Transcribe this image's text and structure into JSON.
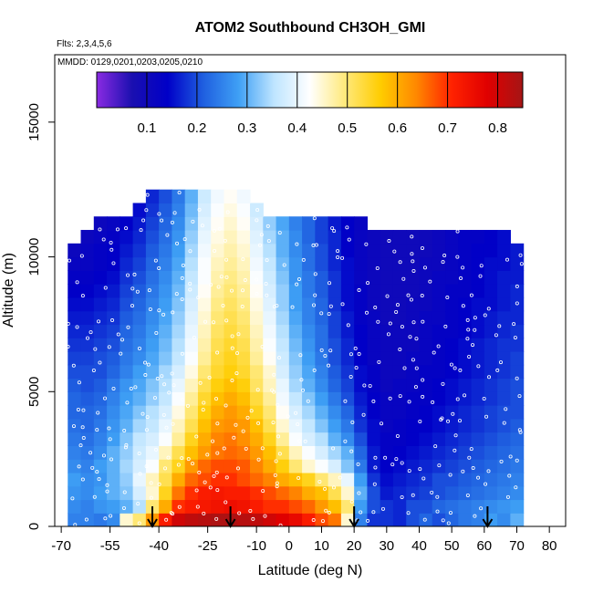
{
  "chart_data": {
    "type": "heatmap",
    "title": "ATOM2 Southbound CH3OH_GMI",
    "subtitle_flights": "Flts: 2,3,4,5,6",
    "subtitle_dates": "MMDD: 0129,0201,0203,0205,0210",
    "xlabel": "Latitude (deg N)",
    "ylabel": "Altitude (m)",
    "xlim": [
      -72,
      85
    ],
    "ylim": [
      0,
      17500
    ],
    "x_ticks": [
      -70,
      -55,
      -40,
      -25,
      -10,
      0,
      10,
      20,
      30,
      40,
      50,
      60,
      70,
      80
    ],
    "x_tick_labels": [
      "-70",
      "-55",
      "-40",
      "-25",
      "-10",
      "0",
      "10",
      "20",
      "30",
      "40",
      "50",
      "60",
      "70",
      "80"
    ],
    "y_ticks": [
      0,
      5000,
      10000,
      15000
    ],
    "y_tick_labels": [
      "0",
      "5000",
      "10000",
      "15000"
    ],
    "colorbar": {
      "min": 0.0,
      "max": 0.85,
      "ticks": [
        0.1,
        0.2,
        0.3,
        0.4,
        0.5,
        0.6,
        0.7,
        0.8
      ],
      "tick_labels": [
        "0.1",
        "0.2",
        "0.3",
        "0.4",
        "0.5",
        "0.6",
        "0.7",
        "0.8"
      ],
      "colors": [
        "#8a2be2",
        "#1a0fb0",
        "#0000c8",
        "#1f5fe0",
        "#3fa0f5",
        "#bfe5ff",
        "#ffffff",
        "#ffe97a",
        "#ffcc00",
        "#ff8800",
        "#ff2200",
        "#e00000",
        "#a51515"
      ]
    },
    "curtain": {
      "lat_edges": [
        -68,
        -64,
        -60,
        -56,
        -52,
        -48,
        -44,
        -40,
        -36,
        -32,
        -28,
        -24,
        -20,
        -16,
        -12,
        -8,
        -4,
        0,
        4,
        8,
        12,
        16,
        20,
        24,
        28,
        32,
        36,
        40,
        44,
        48,
        52,
        56,
        60,
        64,
        68,
        72
      ],
      "alt_edges": [
        0,
        500,
        1000,
        1500,
        2000,
        2500,
        3000,
        3500,
        4000,
        4500,
        5000,
        5500,
        6000,
        6500,
        7000,
        7500,
        8000,
        8500,
        9000,
        9500,
        10000,
        10500,
        11000,
        11500,
        12000,
        12500
      ],
      "rows": [
        [
          0.25,
          0.25,
          0.24,
          0.26,
          0.45,
          0.5,
          0.62,
          0.72,
          0.8,
          0.82,
          0.83,
          0.84,
          0.84,
          0.83,
          0.82,
          0.8,
          0.78,
          0.76,
          0.72,
          0.68,
          0.65,
          0.45,
          0.25,
          0.18,
          0.18,
          0.17,
          0.2,
          0.22,
          0.2,
          0.22,
          0.24,
          0.25,
          0.28,
          0.26,
          0.3
        ],
        [
          0.26,
          0.25,
          0.27,
          0.28,
          0.3,
          0.35,
          0.5,
          0.6,
          0.7,
          0.72,
          0.73,
          0.74,
          0.75,
          0.74,
          0.72,
          0.7,
          0.7,
          0.68,
          0.66,
          0.62,
          0.58,
          0.5,
          0.28,
          0.2,
          0.18,
          0.17,
          0.2,
          0.2,
          0.22,
          0.23,
          0.24,
          0.25,
          0.26,
          0.27,
          0.28
        ],
        [
          0.27,
          0.26,
          0.28,
          0.3,
          0.32,
          0.38,
          0.45,
          0.55,
          0.65,
          0.7,
          0.72,
          0.73,
          0.72,
          0.72,
          0.7,
          0.68,
          0.66,
          0.64,
          0.6,
          0.58,
          0.52,
          0.45,
          0.3,
          0.2,
          0.16,
          0.17,
          0.18,
          0.19,
          0.2,
          0.21,
          0.22,
          0.23,
          0.24,
          0.25,
          0.26
        ],
        [
          0.28,
          0.26,
          0.27,
          0.3,
          0.33,
          0.4,
          0.46,
          0.52,
          0.6,
          0.66,
          0.68,
          0.7,
          0.7,
          0.68,
          0.66,
          0.64,
          0.6,
          0.58,
          0.55,
          0.5,
          0.46,
          0.4,
          0.28,
          0.18,
          0.15,
          0.16,
          0.17,
          0.18,
          0.2,
          0.2,
          0.21,
          0.22,
          0.23,
          0.24,
          0.25
        ],
        [
          0.26,
          0.25,
          0.28,
          0.3,
          0.34,
          0.38,
          0.42,
          0.5,
          0.55,
          0.62,
          0.66,
          0.68,
          0.68,
          0.67,
          0.64,
          0.6,
          0.56,
          0.5,
          0.45,
          0.42,
          0.38,
          0.32,
          0.24,
          0.16,
          0.14,
          0.15,
          0.16,
          0.17,
          0.18,
          0.19,
          0.2,
          0.21,
          0.22,
          0.23,
          0.24
        ],
        [
          0.25,
          0.24,
          0.26,
          0.3,
          0.33,
          0.37,
          0.4,
          0.46,
          0.52,
          0.58,
          0.62,
          0.65,
          0.66,
          0.65,
          0.62,
          0.58,
          0.52,
          0.46,
          0.42,
          0.38,
          0.34,
          0.3,
          0.22,
          0.16,
          0.13,
          0.14,
          0.15,
          0.16,
          0.17,
          0.18,
          0.19,
          0.2,
          0.21,
          0.22,
          0.23
        ],
        [
          0.24,
          0.23,
          0.25,
          0.28,
          0.32,
          0.36,
          0.38,
          0.42,
          0.48,
          0.55,
          0.6,
          0.64,
          0.65,
          0.63,
          0.6,
          0.55,
          0.48,
          0.42,
          0.38,
          0.35,
          0.3,
          0.26,
          0.2,
          0.15,
          0.13,
          0.13,
          0.14,
          0.15,
          0.16,
          0.17,
          0.18,
          0.19,
          0.2,
          0.21,
          0.22
        ],
        [
          0.23,
          0.22,
          0.24,
          0.27,
          0.3,
          0.34,
          0.36,
          0.4,
          0.46,
          0.52,
          0.58,
          0.62,
          0.63,
          0.62,
          0.58,
          0.52,
          0.45,
          0.4,
          0.36,
          0.32,
          0.28,
          0.24,
          0.18,
          0.15,
          0.12,
          0.13,
          0.14,
          0.14,
          0.15,
          0.16,
          0.17,
          0.18,
          0.19,
          0.2,
          0.21
        ],
        [
          0.22,
          0.22,
          0.23,
          0.26,
          0.29,
          0.32,
          0.35,
          0.38,
          0.44,
          0.5,
          0.56,
          0.6,
          0.62,
          0.6,
          0.55,
          0.5,
          0.43,
          0.38,
          0.34,
          0.3,
          0.26,
          0.22,
          0.17,
          0.14,
          0.12,
          0.12,
          0.13,
          0.14,
          0.15,
          0.16,
          0.17,
          0.18,
          0.19,
          0.2,
          0.2
        ],
        [
          0.22,
          0.21,
          0.22,
          0.25,
          0.28,
          0.3,
          0.33,
          0.36,
          0.42,
          0.48,
          0.54,
          0.58,
          0.6,
          0.58,
          0.53,
          0.48,
          0.41,
          0.36,
          0.32,
          0.28,
          0.24,
          0.2,
          0.16,
          0.14,
          0.12,
          0.12,
          0.13,
          0.13,
          0.14,
          0.15,
          0.16,
          0.17,
          0.18,
          0.19,
          0.2
        ],
        [
          0.21,
          0.2,
          0.21,
          0.24,
          0.27,
          0.29,
          0.32,
          0.35,
          0.4,
          0.46,
          0.52,
          0.56,
          0.58,
          0.56,
          0.51,
          0.46,
          0.4,
          0.34,
          0.3,
          0.26,
          0.22,
          0.19,
          0.15,
          0.13,
          0.11,
          0.12,
          0.12,
          0.13,
          0.14,
          0.15,
          0.16,
          0.17,
          0.18,
          0.19,
          0.2
        ],
        [
          0.2,
          0.2,
          0.2,
          0.22,
          0.25,
          0.28,
          0.3,
          0.34,
          0.38,
          0.44,
          0.5,
          0.54,
          0.56,
          0.54,
          0.5,
          0.45,
          0.38,
          0.33,
          0.29,
          0.25,
          0.21,
          0.18,
          0.15,
          0.13,
          0.11,
          0.11,
          0.12,
          0.13,
          0.13,
          0.14,
          0.15,
          0.16,
          0.17,
          0.18,
          0.19
        ],
        [
          0.19,
          0.19,
          0.2,
          0.21,
          0.24,
          0.26,
          0.29,
          0.32,
          0.36,
          0.42,
          0.48,
          0.53,
          0.55,
          0.53,
          0.48,
          0.43,
          0.37,
          0.32,
          0.28,
          0.24,
          0.2,
          0.17,
          0.14,
          0.12,
          0.11,
          0.11,
          0.12,
          0.12,
          0.13,
          0.14,
          0.15,
          0.16,
          0.17,
          0.18,
          0.19
        ],
        [
          0.18,
          0.18,
          0.19,
          0.2,
          0.23,
          0.25,
          0.28,
          0.31,
          0.35,
          0.41,
          0.47,
          0.52,
          0.54,
          0.52,
          0.47,
          0.42,
          0.36,
          0.31,
          0.27,
          0.23,
          0.2,
          0.17,
          0.14,
          0.12,
          0.11,
          0.11,
          0.11,
          0.12,
          0.13,
          0.14,
          0.15,
          0.16,
          0.17,
          0.18,
          0.18
        ],
        [
          0.17,
          0.17,
          0.18,
          0.19,
          0.22,
          0.24,
          0.27,
          0.3,
          0.34,
          0.4,
          0.46,
          0.51,
          0.53,
          0.51,
          0.46,
          0.41,
          0.35,
          0.3,
          0.26,
          0.23,
          0.19,
          0.16,
          0.14,
          0.12,
          0.11,
          0.11,
          0.11,
          0.12,
          0.13,
          0.13,
          0.14,
          0.15,
          0.16,
          0.17,
          0.18
        ],
        [
          0.16,
          0.16,
          0.17,
          0.18,
          0.21,
          0.23,
          0.26,
          0.29,
          0.33,
          0.39,
          0.45,
          0.5,
          0.52,
          0.5,
          0.45,
          0.4,
          0.34,
          0.29,
          0.25,
          0.22,
          0.19,
          0.16,
          0.13,
          0.12,
          0.1,
          0.1,
          0.11,
          0.12,
          0.12,
          0.13,
          0.14,
          0.15,
          0.16,
          0.17,
          0.17
        ],
        [
          0.15,
          0.15,
          0.16,
          0.17,
          0.2,
          0.22,
          0.25,
          0.28,
          0.32,
          0.38,
          0.44,
          0.49,
          0.51,
          0.49,
          0.44,
          0.39,
          0.33,
          0.28,
          0.25,
          0.22,
          0.18,
          0.15,
          0.13,
          0.11,
          0.1,
          0.1,
          0.11,
          0.11,
          0.12,
          0.13,
          0.14,
          0.15,
          0.15,
          0.16,
          0.17
        ],
        [
          0.14,
          0.14,
          0.15,
          0.16,
          0.19,
          0.21,
          0.24,
          0.27,
          0.31,
          0.37,
          0.43,
          0.48,
          0.5,
          0.48,
          0.43,
          0.38,
          0.33,
          0.28,
          0.24,
          0.21,
          0.18,
          0.15,
          0.13,
          0.11,
          0.1,
          0.1,
          0.1,
          0.11,
          0.12,
          0.13,
          0.13,
          0.14,
          0.15,
          0.16,
          0.17
        ],
        [
          0.13,
          0.13,
          0.14,
          0.15,
          0.18,
          0.2,
          0.23,
          0.26,
          0.3,
          0.36,
          0.42,
          0.47,
          0.49,
          0.47,
          0.42,
          0.37,
          0.32,
          0.27,
          0.24,
          0.21,
          0.18,
          0.15,
          0.12,
          0.11,
          0.1,
          0.1,
          0.1,
          0.11,
          0.12,
          0.12,
          0.13,
          0.14,
          0.15,
          0.16,
          0.16
        ],
        [
          0.12,
          0.12,
          0.13,
          0.14,
          0.17,
          0.19,
          0.22,
          0.25,
          0.29,
          0.35,
          0.42,
          0.46,
          0.48,
          0.46,
          0.41,
          0.36,
          0.31,
          0.27,
          0.23,
          0.2,
          0.17,
          0.15,
          0.12,
          0.11,
          0.1,
          0.1,
          0.1,
          0.11,
          0.11,
          0.12,
          0.13,
          0.14,
          0.15,
          0.15,
          0.16
        ],
        [
          0.11,
          0.12,
          0.13,
          0.14,
          0.16,
          0.18,
          0.21,
          0.24,
          0.28,
          0.34,
          0.41,
          0.45,
          0.47,
          0.45,
          0.4,
          0.35,
          0.3,
          0.26,
          0.23,
          0.2,
          0.17,
          0.14,
          0.12,
          0.11,
          0.1,
          0.1,
          0.1,
          0.1,
          0.11,
          0.12,
          0.13,
          0.14,
          0.14,
          0.15,
          0.16
        ],
        [
          null,
          0.11,
          0.12,
          0.13,
          0.15,
          0.17,
          0.2,
          0.23,
          0.27,
          0.33,
          0.4,
          0.44,
          0.46,
          0.44,
          0.39,
          0.34,
          0.3,
          0.26,
          0.22,
          0.19,
          0.17,
          0.14,
          0.12,
          0.11,
          0.1,
          0.1,
          0.1,
          0.1,
          0.11,
          0.12,
          0.13,
          0.13,
          0.14,
          0.15,
          null
        ],
        [
          null,
          null,
          0.11,
          0.12,
          0.14,
          0.16,
          0.19,
          0.22,
          0.26,
          0.32,
          0.39,
          0.43,
          0.45,
          0.43,
          0.38,
          0.33,
          0.29,
          0.25,
          0.22,
          0.19,
          0.16,
          0.14,
          0.12,
          null,
          null,
          null,
          null,
          null,
          null,
          null,
          null,
          null,
          null,
          null,
          null
        ],
        [
          null,
          null,
          null,
          null,
          null,
          0.15,
          0.18,
          0.21,
          0.25,
          0.31,
          0.38,
          0.42,
          0.44,
          0.42,
          0.37,
          null,
          null,
          null,
          null,
          null,
          null,
          null,
          null,
          null,
          null,
          null,
          null,
          null,
          null,
          null,
          null,
          null,
          null,
          null,
          null
        ],
        [
          null,
          null,
          null,
          null,
          null,
          null,
          0.17,
          0.2,
          0.24,
          0.3,
          0.37,
          0.41,
          0.43,
          0.41,
          null,
          null,
          null,
          null,
          null,
          null,
          null,
          null,
          null,
          null,
          null,
          null,
          null,
          null,
          null,
          null,
          null,
          null,
          null,
          null,
          null
        ]
      ]
    },
    "arrows": [
      -42,
      -18,
      20,
      61
    ]
  }
}
